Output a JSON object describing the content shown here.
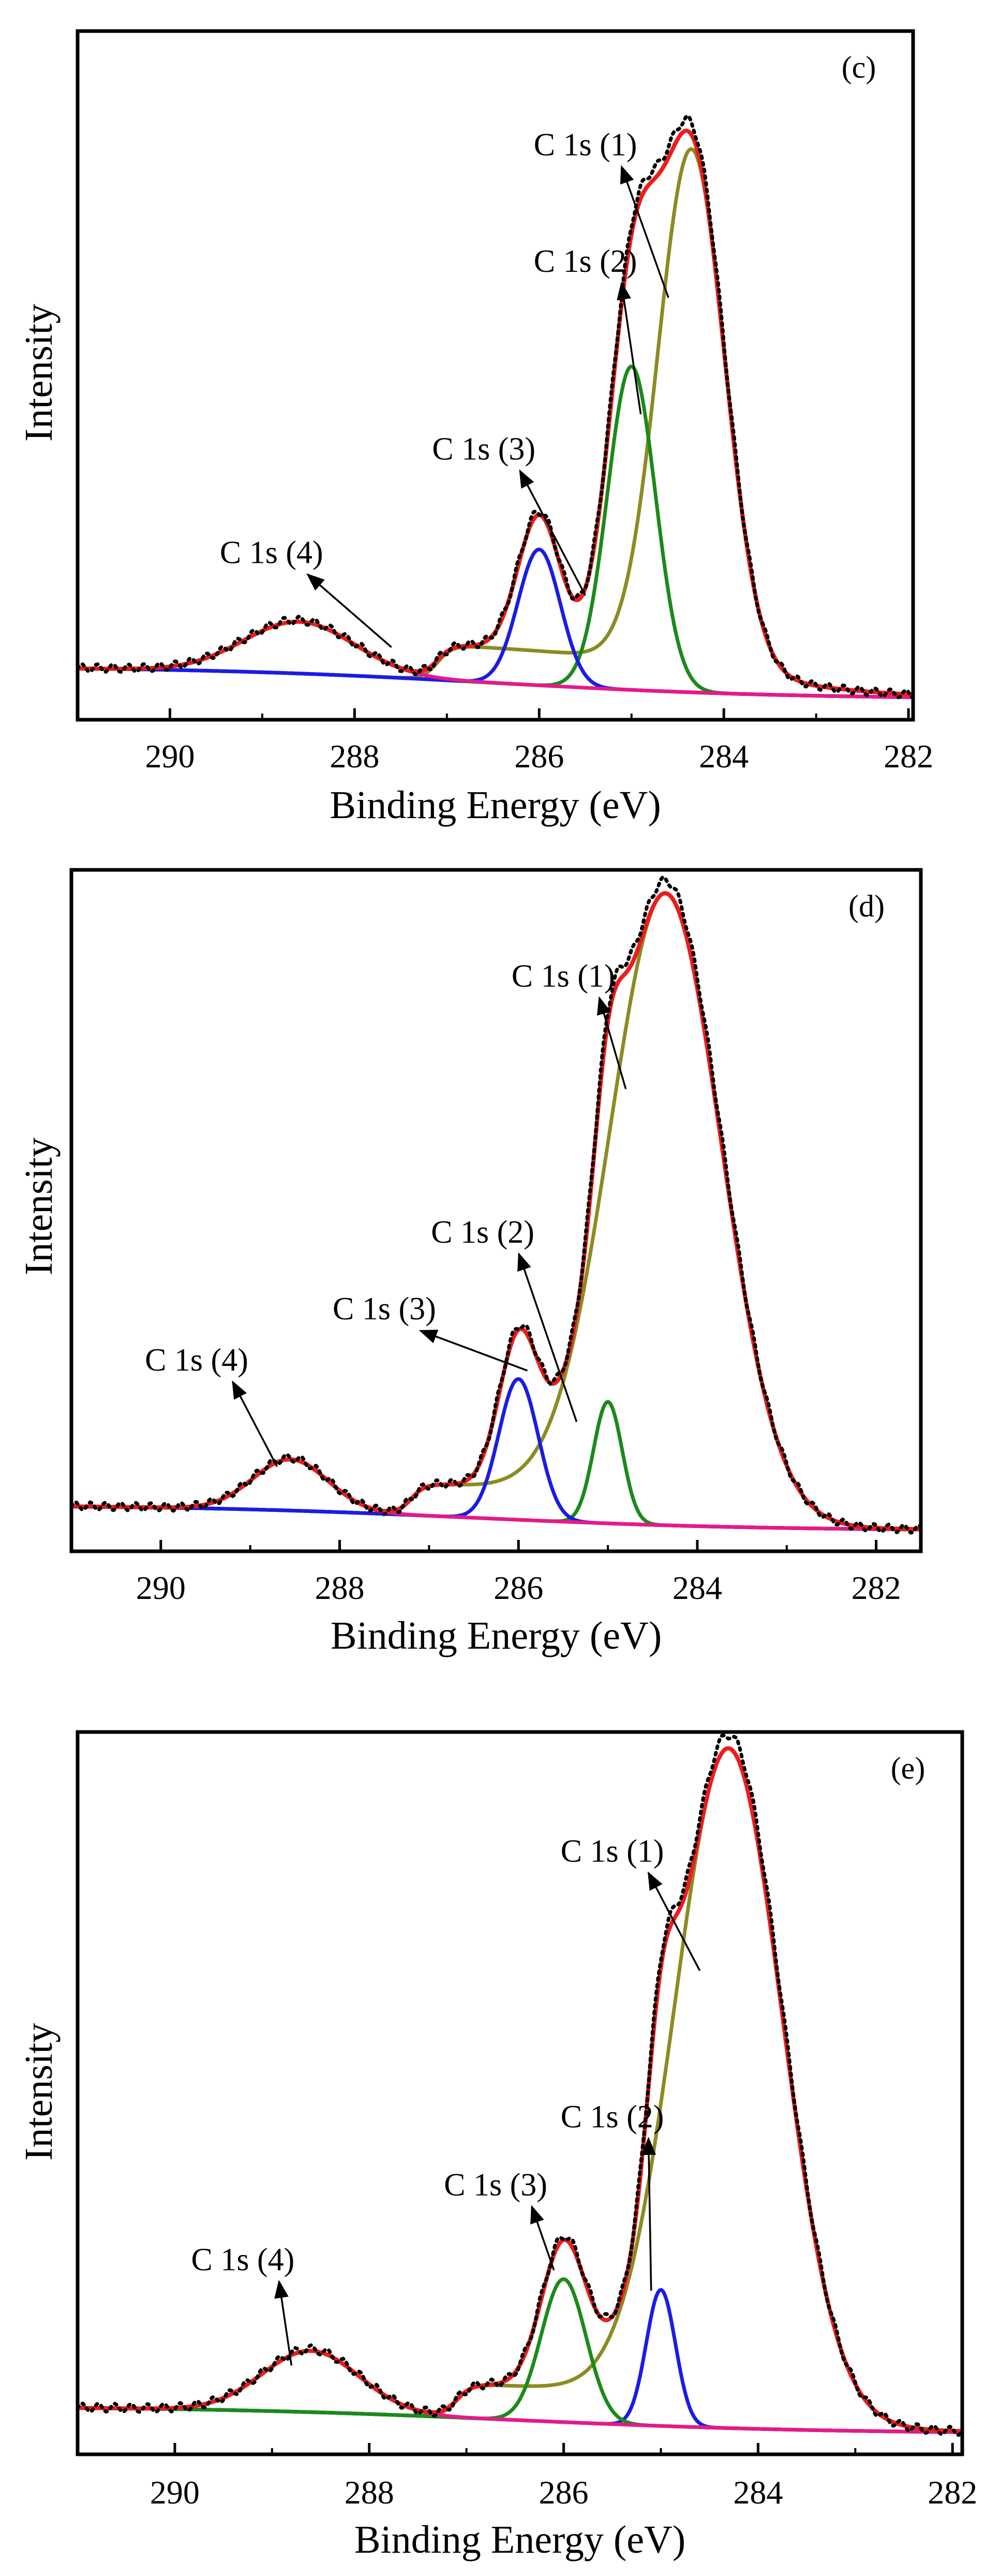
{
  "chart_data": [
    {
      "type": "line",
      "panel_label": "(c)",
      "xlabel": "Binding Energy (eV)",
      "ylabel": "Intensity",
      "xlim": [
        291.0,
        281.95
      ],
      "ylim": [
        0,
        100
      ],
      "x_ticks": [
        290,
        288,
        286,
        284,
        282
      ],
      "x_tick_labels": [
        "290",
        "288",
        "286",
        "284",
        "282"
      ],
      "background": {
        "start": 5,
        "end": 0
      },
      "peaks": [
        {
          "name": "C 1s (1)",
          "color": "#8b8b22",
          "center": 284.35,
          "height": 80,
          "sigma": 0.36,
          "label_xy": [
            285.5,
            84
          ],
          "arrow_end": [
            284.6,
            62
          ]
        },
        {
          "name": "C 1s (2)",
          "color": "#1a8a1a",
          "center": 285.0,
          "height": 50,
          "sigma": 0.26,
          "label_xy": [
            285.5,
            66
          ],
          "arrow_end": [
            284.9,
            44
          ]
        },
        {
          "name": "C 1s (3)",
          "color": "#1b1be6",
          "center": 286.0,
          "height": 21,
          "sigma": 0.23,
          "label_xy": [
            286.6,
            37
          ],
          "arrow_end": [
            285.5,
            16
          ]
        },
        {
          "name": "C 1s (4)",
          "color": "#e6198a",
          "center": 288.6,
          "height": 8,
          "sigma": 0.6,
          "label_xy": [
            288.9,
            21
          ],
          "arrow_end": [
            287.6,
            8
          ]
        }
      ],
      "plateau": {
        "top": 287.1,
        "level": 5.5,
        "width": 0.7
      },
      "envelope_color": "#ee1c1c",
      "data_color": "#000000"
    },
    {
      "type": "line",
      "panel_label": "(d)",
      "xlabel": "Binding Energy (eV)",
      "ylabel": "Intensity",
      "xlim": [
        291.0,
        281.5
      ],
      "ylim": [
        0,
        100
      ],
      "x_ticks": [
        290,
        288,
        286,
        284,
        282
      ],
      "x_tick_labels": [
        "290",
        "288",
        "286",
        "284",
        "282"
      ],
      "background": {
        "start": 4,
        "end": 0
      },
      "peaks": [
        {
          "name": "C 1s (1)",
          "color": "#8b8b22",
          "center": 284.35,
          "height": 95,
          "sigma": 0.62,
          "label_xy": [
            285.5,
            85
          ],
          "arrow_end": [
            284.8,
            69
          ]
        },
        {
          "name": "C 1s (2)",
          "color": "#1a8a1a",
          "center": 285.0,
          "height": 19,
          "sigma": 0.16,
          "label_xy": [
            286.4,
            45
          ],
          "arrow_end": [
            285.35,
            17
          ]
        },
        {
          "name": "C 1s (3)",
          "color": "#1b1be6",
          "center": 286.0,
          "height": 22,
          "sigma": 0.22,
          "label_xy": [
            287.5,
            33
          ],
          "arrow_end": [
            285.9,
            25
          ]
        },
        {
          "name": "C 1s (4)",
          "color": "#e6198a",
          "center": 288.55,
          "height": 8,
          "sigma": 0.42,
          "label_xy": [
            289.6,
            25
          ],
          "arrow_end": [
            288.7,
            10
          ]
        }
      ],
      "plateau": {
        "top": 287.2,
        "level": 5,
        "width": 0.5
      },
      "envelope_color": "#ee1c1c",
      "data_color": "#000000"
    },
    {
      "type": "line",
      "panel_label": "(e)",
      "xlabel": "Binding Energy (eV)",
      "ylabel": "Intensity",
      "xlim": [
        291.0,
        281.9
      ],
      "ylim": [
        0,
        100
      ],
      "x_ticks": [
        290,
        288,
        286,
        284,
        282
      ],
      "x_tick_labels": [
        "290",
        "288",
        "286",
        "284",
        "282"
      ],
      "background": {
        "start": 4,
        "end": 0
      },
      "peaks": [
        {
          "name": "C 1s (1)",
          "color": "#8b8b22",
          "center": 284.3,
          "height": 96,
          "sigma": 0.55,
          "label_xy": [
            285.5,
            84
          ],
          "arrow_end": [
            284.6,
            68
          ]
        },
        {
          "name": "C 1s (2)",
          "color": "#1b1be6",
          "center": 285.0,
          "height": 20,
          "sigma": 0.15,
          "label_xy": [
            285.5,
            45
          ],
          "arrow_end": [
            285.1,
            21
          ]
        },
        {
          "name": "C 1s (3)",
          "color": "#1a8a1a",
          "center": 286.0,
          "height": 21,
          "sigma": 0.23,
          "label_xy": [
            286.7,
            35
          ],
          "arrow_end": [
            286.1,
            24
          ]
        },
        {
          "name": "C 1s (4)",
          "color": "#e6198a",
          "center": 288.6,
          "height": 9,
          "sigma": 0.5,
          "label_xy": [
            289.3,
            24
          ],
          "arrow_end": [
            288.8,
            10
          ]
        }
      ],
      "plateau": {
        "top": 287.1,
        "level": 5,
        "width": 0.5
      },
      "envelope_color": "#ee1c1c",
      "data_color": "#000000"
    }
  ]
}
